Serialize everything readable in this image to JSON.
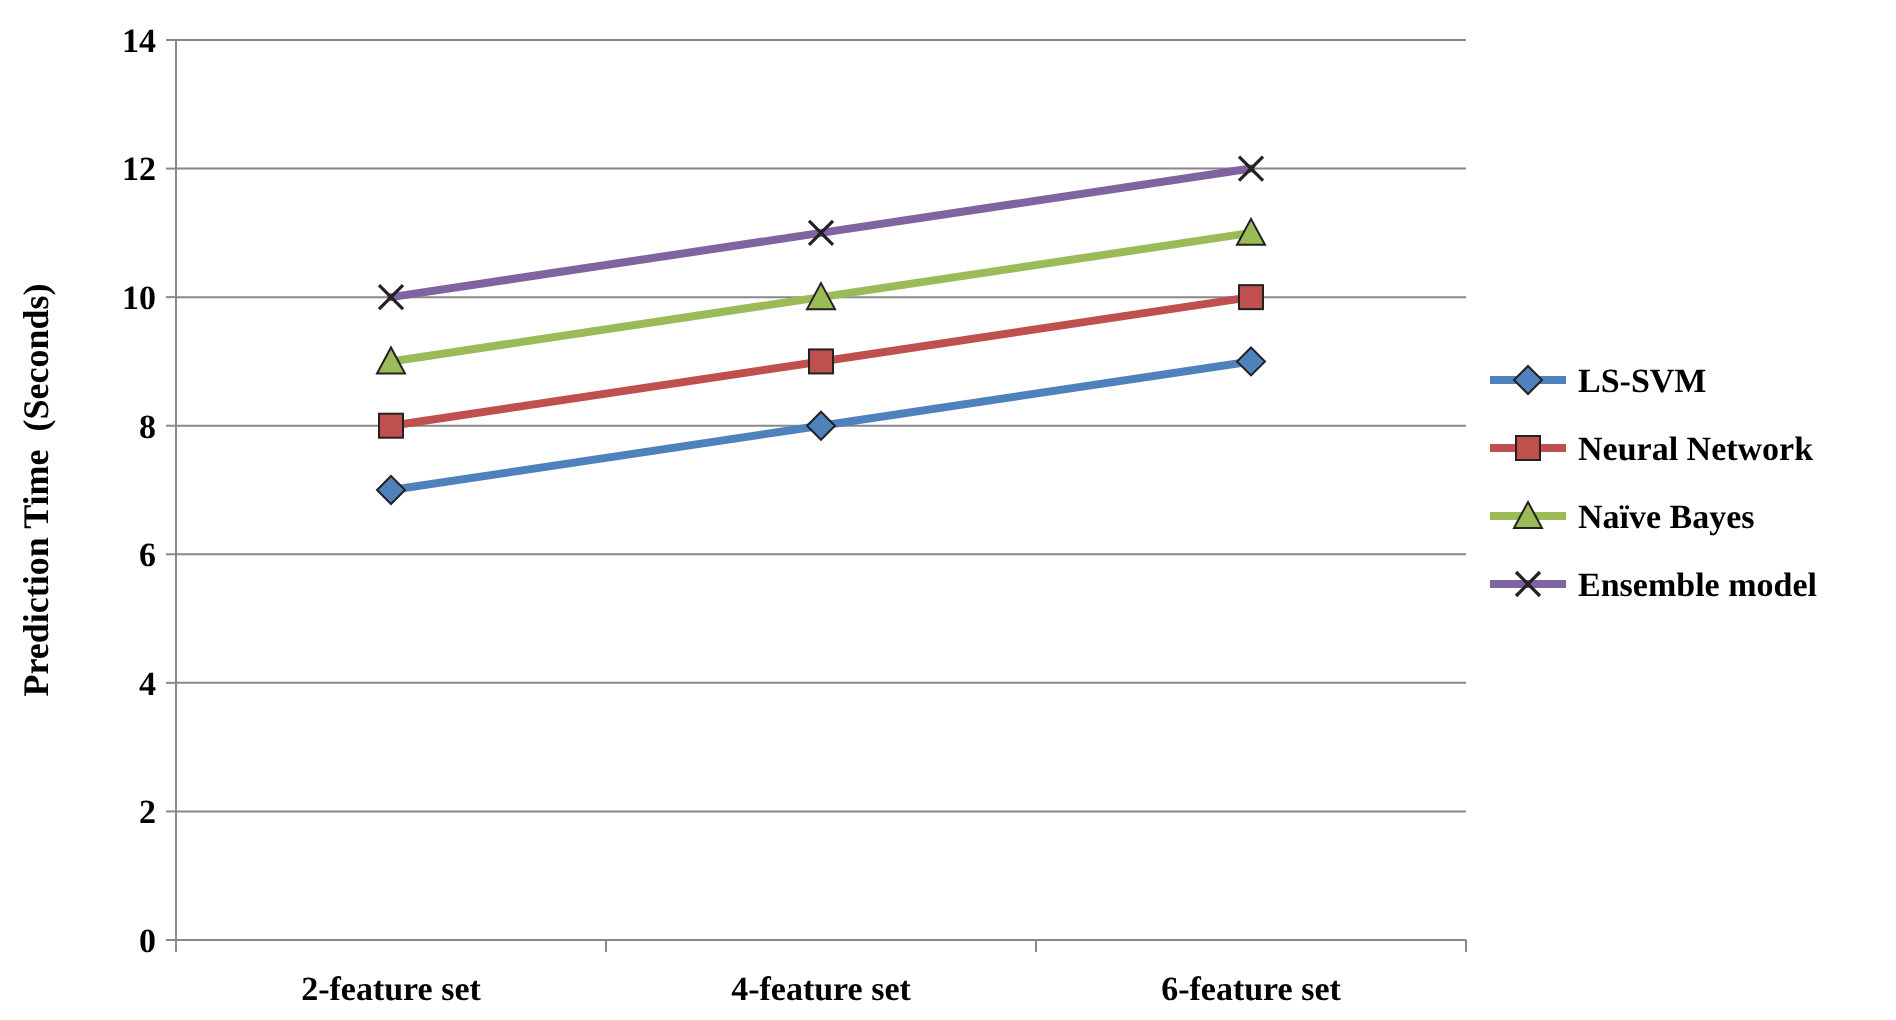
{
  "chart_data": {
    "type": "line",
    "ylabel": "Prediction Time  (Seconds)",
    "categories": [
      "2-feature set",
      "4-feature set",
      "6-feature set"
    ],
    "series": [
      {
        "name": "LS-SVM",
        "color": "#4f81bd",
        "marker": "diamond",
        "values": [
          7,
          8,
          9
        ]
      },
      {
        "name": "Neural Network",
        "color": "#c0504d",
        "marker": "square",
        "values": [
          8,
          9,
          10
        ]
      },
      {
        "name": "Naïve Bayes",
        "color": "#9bbb59",
        "marker": "triangle",
        "values": [
          9,
          10,
          11
        ]
      },
      {
        "name": "Ensemble model",
        "color": "#8064a2",
        "marker": "cross",
        "values": [
          10,
          11,
          12
        ]
      }
    ],
    "ylim": [
      0,
      14
    ],
    "yticks": [
      0,
      2,
      4,
      6,
      8,
      10,
      12,
      14
    ],
    "grid": "y",
    "legend": "right"
  }
}
